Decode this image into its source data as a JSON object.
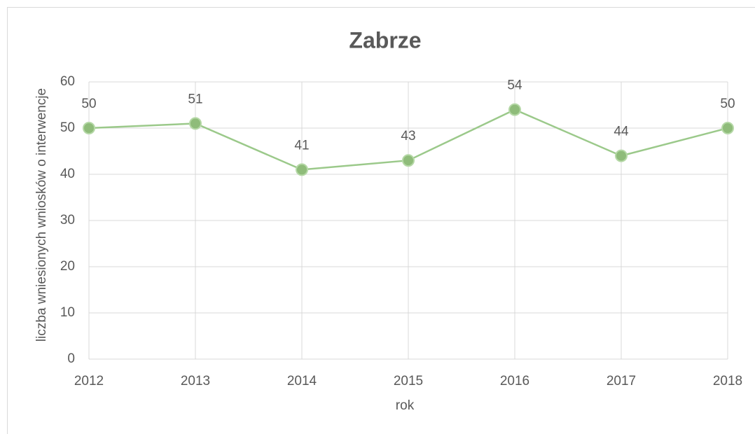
{
  "chart_data": {
    "type": "line",
    "title": "Zabrze",
    "x_label": "rok",
    "y_label": "liczba wniesionych wniosków o interwencje",
    "x": [
      2012,
      2013,
      2014,
      2015,
      2016,
      2017,
      2018
    ],
    "series": [
      {
        "name": "Zabrze",
        "color": "#9bc98a",
        "values": [
          50,
          51,
          41,
          43,
          54,
          44,
          50
        ]
      }
    ],
    "xlim": [
      2012,
      2018
    ],
    "xticks": [
      2012,
      2013,
      2014,
      2015,
      2016,
      2017,
      2018
    ],
    "ylim": [
      0,
      60
    ],
    "yticks": [
      0,
      10,
      20,
      30,
      40,
      50,
      60
    ],
    "grid": true
  }
}
